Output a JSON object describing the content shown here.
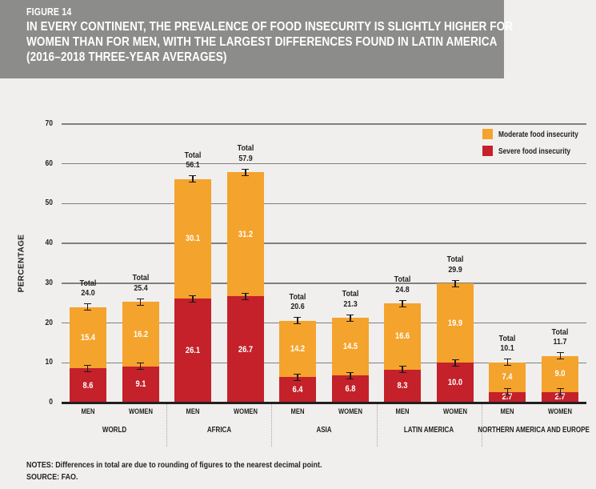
{
  "figure": {
    "label": "FIGURE 14",
    "title_lines": [
      "IN EVERY CONTINENT, THE PREVALENCE OF FOOD INSECURITY IS SLIGHTLY HIGHER FOR",
      "WOMEN THAN FOR MEN, WITH THE LARGEST DIFFERENCES FOUND IN LATIN AMERICA",
      "(2016–2018 THREE-YEAR AVERAGES)"
    ]
  },
  "legend": [
    {
      "label": "Moderate food insecurity",
      "color": "#F4A32C"
    },
    {
      "label": "Severe food insecurity",
      "color": "#C4212A"
    }
  ],
  "chart_data": {
    "type": "bar",
    "stacked": true,
    "ylabel": "PERCENTAGE",
    "ylim": [
      0,
      70
    ],
    "yticks": [
      0,
      10,
      20,
      30,
      40,
      50,
      60,
      70
    ],
    "grid": true,
    "error_bars": true,
    "legend_position": "top-right",
    "total_label": "Total",
    "categories": [
      "WORLD",
      "AFRICA",
      "ASIA",
      "LATIN AMERICA",
      "NORTHERN AMERICA AND EUROPE"
    ],
    "bar_labels": [
      "MEN",
      "WOMEN"
    ],
    "series": [
      {
        "name": "Severe food insecurity",
        "color": "#C4212A",
        "values": {
          "MEN": [
            8.6,
            26.1,
            6.4,
            8.3,
            2.7
          ],
          "WOMEN": [
            9.1,
            26.7,
            6.8,
            10.0,
            2.7
          ]
        }
      },
      {
        "name": "Moderate food insecurity",
        "color": "#F4A32C",
        "values": {
          "MEN": [
            15.4,
            30.1,
            14.2,
            16.6,
            7.4
          ],
          "WOMEN": [
            16.2,
            31.2,
            14.5,
            19.9,
            9.0
          ]
        }
      }
    ],
    "totals": {
      "MEN": [
        24.0,
        56.1,
        20.6,
        24.8,
        10.1
      ],
      "WOMEN": [
        25.4,
        57.9,
        21.3,
        29.9,
        11.7
      ]
    }
  },
  "notes": {
    "notes_line": "NOTES: Differences in total are due to rounding of figures to the nearest decimal point.",
    "source_line": "SOURCE: FAO."
  },
  "colors": {
    "moderate": "#F4A32C",
    "severe": "#C4212A",
    "header_bg": "#8C8C8A",
    "page_bg": "#F0EFED",
    "text": "#231F20",
    "grid": "#7F7F7F",
    "baseline": "#231F20"
  }
}
